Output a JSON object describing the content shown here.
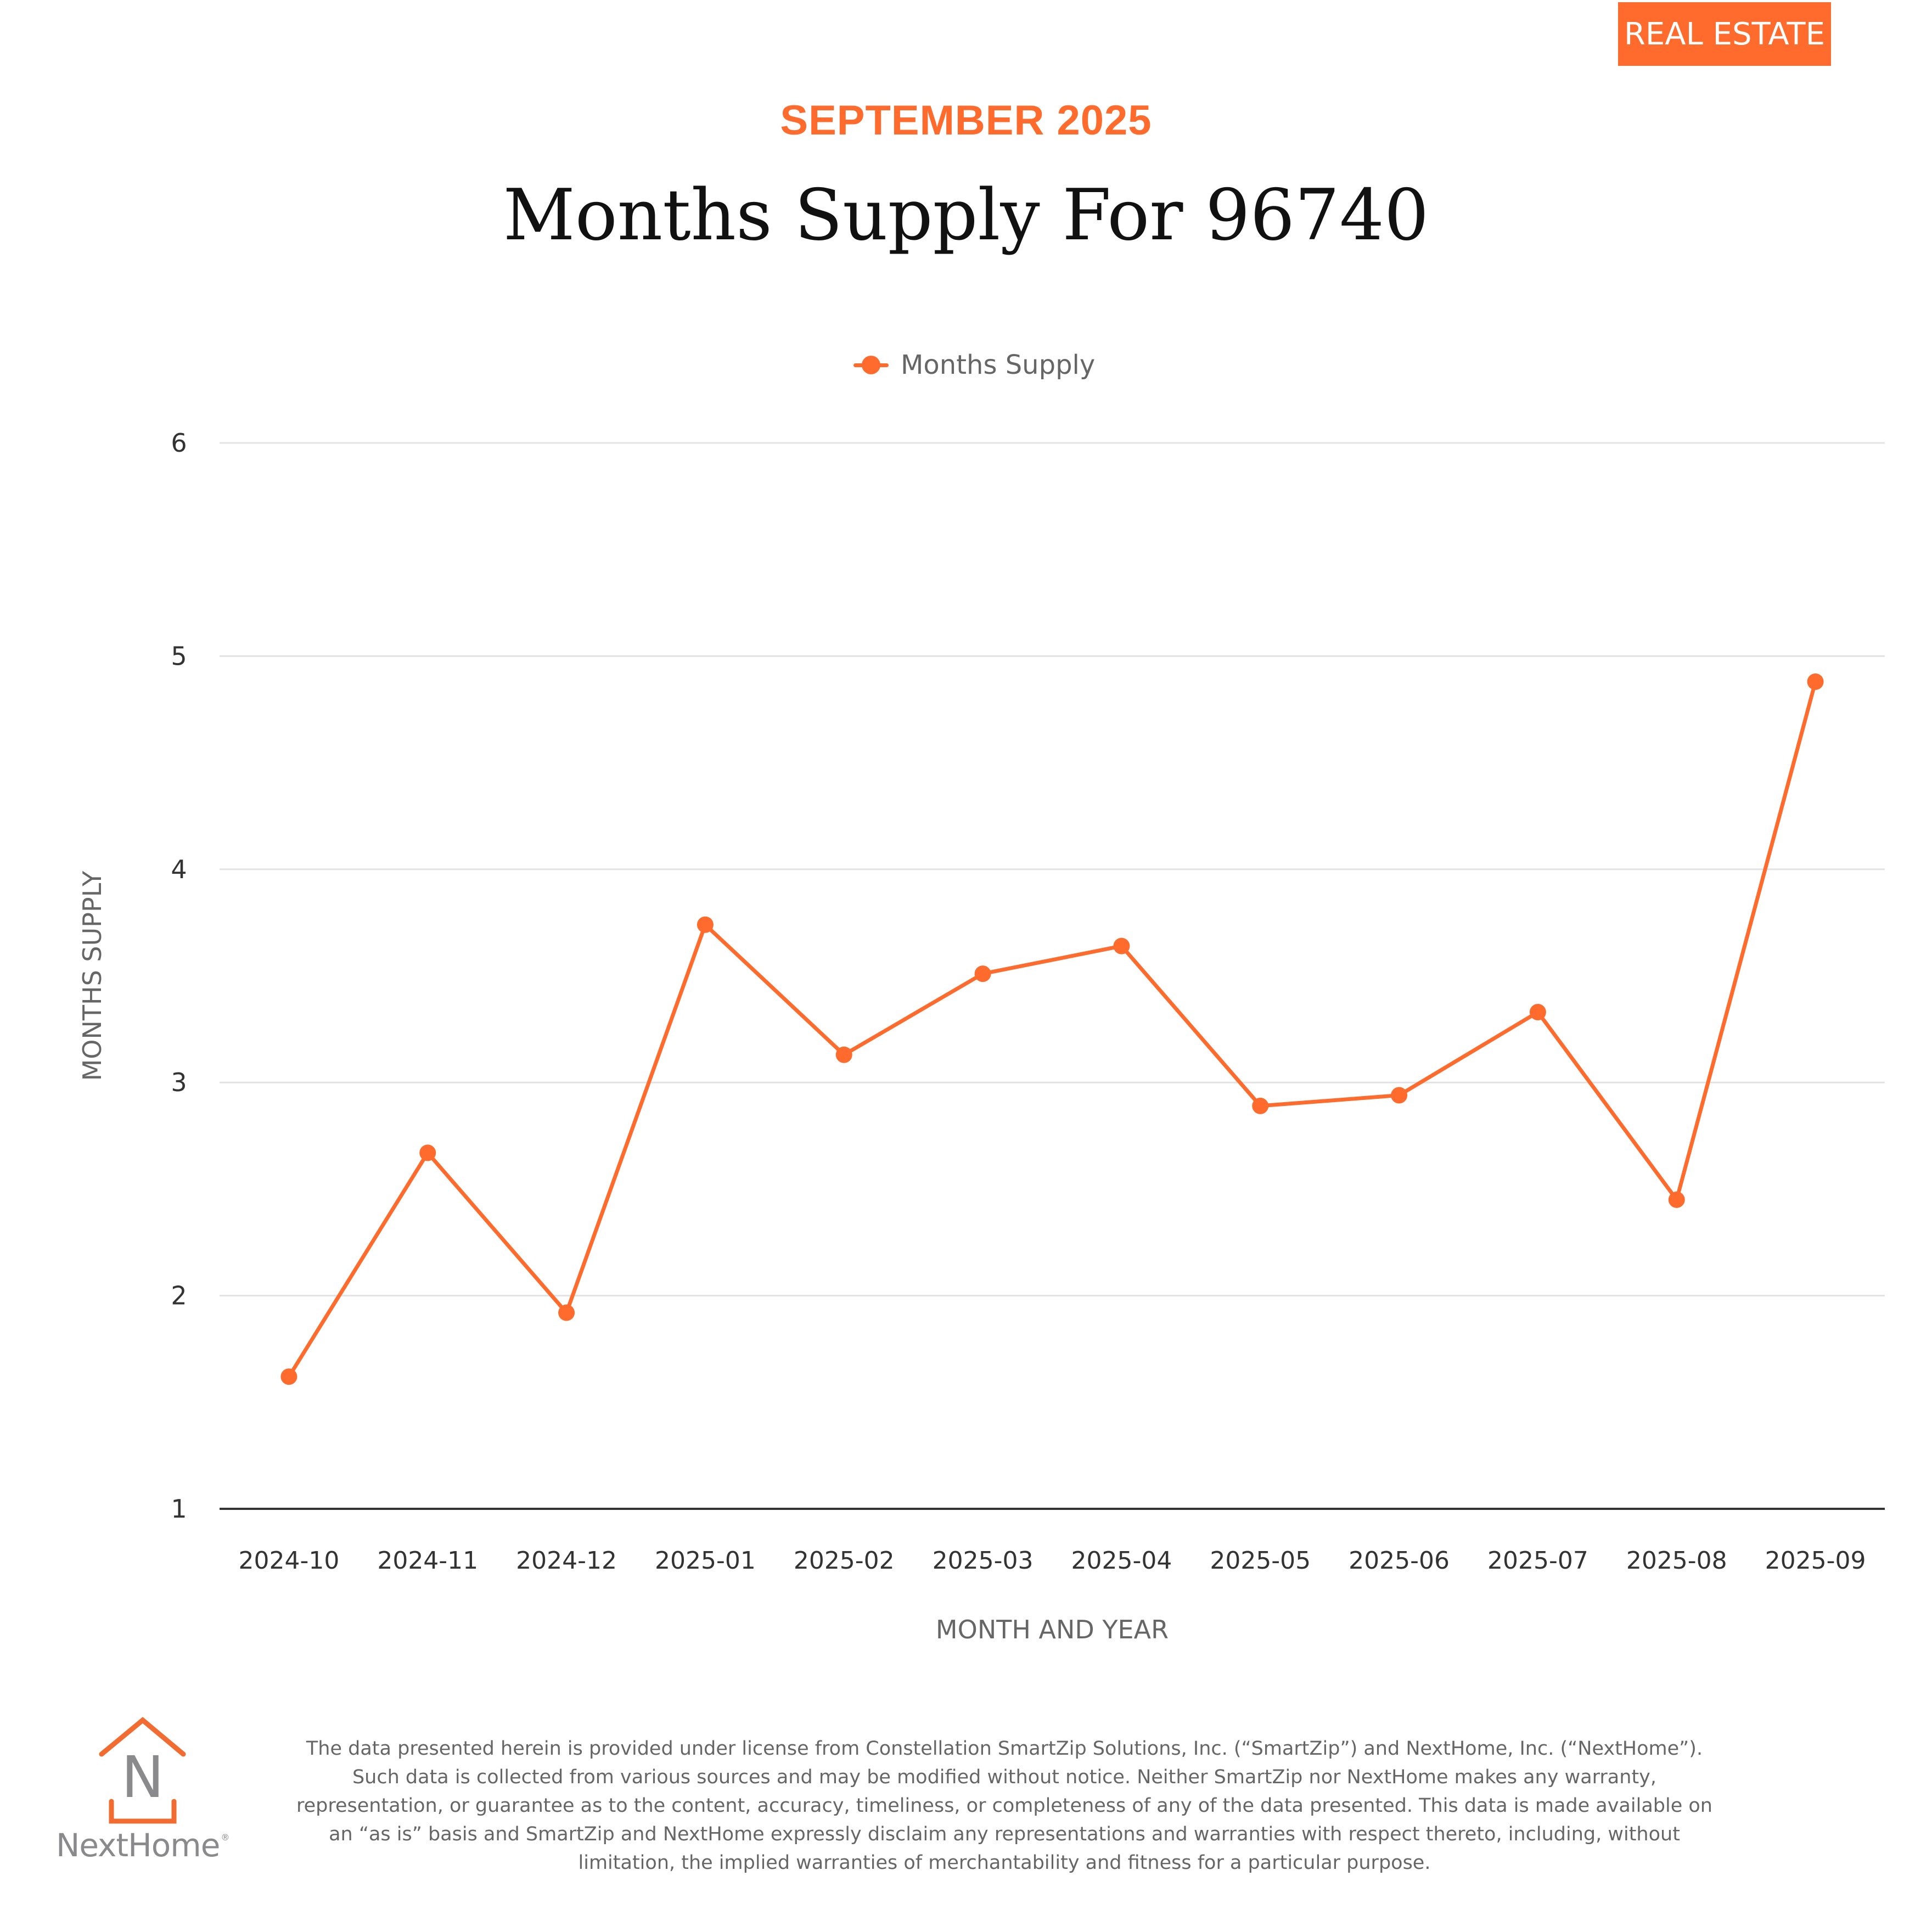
{
  "badge": {
    "label": "REAL ESTATE"
  },
  "header": {
    "subtitle": "SEPTEMBER 2025",
    "title": "Months Supply For 96740"
  },
  "colors": {
    "accent": "#FF6B2C",
    "gridline": "#E3E3E3",
    "axis": "#333333",
    "text_muted": "#666666"
  },
  "chart_data": {
    "type": "line",
    "title": "Months Supply For 96740",
    "xlabel": "MONTH AND YEAR",
    "ylabel": "MONTHS SUPPLY",
    "ylim": [
      1,
      6
    ],
    "yticks": [
      "1",
      "2",
      "3",
      "4",
      "5",
      "6"
    ],
    "grid": true,
    "legend": "top-center",
    "categories": [
      "2024-10",
      "2024-11",
      "2024-12",
      "2025-01",
      "2025-02",
      "2025-03",
      "2025-04",
      "2025-05",
      "2025-06",
      "2025-07",
      "2025-08",
      "2025-09"
    ],
    "series": [
      {
        "name": "Months Supply",
        "color": "#FF6B2C",
        "values": [
          1.62,
          2.67,
          1.92,
          3.74,
          3.13,
          3.51,
          3.64,
          2.89,
          2.94,
          3.33,
          2.45,
          4.88
        ]
      }
    ]
  },
  "footer": {
    "logo_text": "NextHome",
    "logo_mark": "N",
    "logo_registered": "®",
    "disclaimer": "The data presented herein is provided under license from Constellation SmartZip Solutions, Inc. (“SmartZip”) and NextHome, Inc. (“NextHome”). Such data is collected from various sources and may be modified without notice. Neither SmartZip nor NextHome makes any warranty, representation, or guarantee as to the content, accuracy, timeliness, or completeness of any of the data presented. This data is made available on an “as is” basis and SmartZip and NextHome expressly disclaim any representations and warranties with respect thereto, including, without limitation, the implied warranties of merchantability and fitness for a particular purpose."
  }
}
